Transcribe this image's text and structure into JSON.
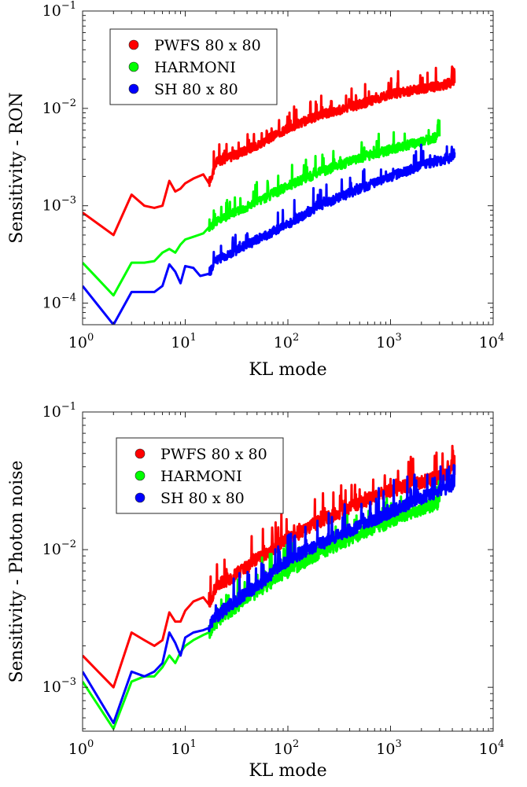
{
  "chart_data": [
    {
      "type": "line",
      "xscale": "log",
      "yscale": "log",
      "xlim": [
        1,
        10000
      ],
      "ylim": [
        6e-05,
        0.1
      ],
      "xlabel": "KL mode",
      "ylabel": "Sensitivity - RON",
      "xticks": [
        {
          "base": "10",
          "exp": "0",
          "value": 1
        },
        {
          "base": "10",
          "exp": "1",
          "value": 10
        },
        {
          "base": "10",
          "exp": "2",
          "value": 100
        },
        {
          "base": "10",
          "exp": "3",
          "value": 1000
        },
        {
          "base": "10",
          "exp": "4",
          "value": 10000
        }
      ],
      "yticks": [
        {
          "base": "10",
          "exp": "−4",
          "value": 0.0001
        },
        {
          "base": "10",
          "exp": "−3",
          "value": 0.001
        },
        {
          "base": "10",
          "exp": "−2",
          "value": 0.01
        },
        {
          "base": "10",
          "exp": "−1",
          "value": 0.1
        }
      ],
      "legend_position": "top-left",
      "series": [
        {
          "name": "PWFS 80 x 80",
          "color": "#ff0000",
          "max_mode": 4200,
          "points": [
            [
              1,
              0.00085
            ],
            [
              2,
              0.0005
            ],
            [
              3,
              0.0013
            ],
            [
              4,
              0.001
            ],
            [
              5,
              0.00095
            ],
            [
              6,
              0.001
            ],
            [
              7,
              0.0018
            ],
            [
              8,
              0.0014
            ],
            [
              9,
              0.0015
            ],
            [
              10,
              0.0017
            ],
            [
              12,
              0.0019
            ],
            [
              15,
              0.0021
            ],
            [
              17,
              0.0017
            ],
            [
              20,
              0.0028
            ],
            [
              30,
              0.0033
            ],
            [
              50,
              0.0042
            ],
            [
              100,
              0.0063
            ],
            [
              200,
              0.0085
            ],
            [
              500,
              0.011
            ],
            [
              1000,
              0.014
            ],
            [
              2000,
              0.016
            ],
            [
              3000,
              0.017
            ],
            [
              4200,
              0.019
            ]
          ]
        },
        {
          "name": "HARMONI",
          "color": "#00ff00",
          "max_mode": 3000,
          "points": [
            [
              1,
              0.00026
            ],
            [
              2,
              0.00012
            ],
            [
              3,
              0.00026
            ],
            [
              4,
              0.00026
            ],
            [
              5,
              0.00027
            ],
            [
              6,
              0.00033
            ],
            [
              7,
              0.00036
            ],
            [
              8,
              0.00033
            ],
            [
              9,
              0.0004
            ],
            [
              10,
              0.00045
            ],
            [
              12,
              0.00048
            ],
            [
              15,
              0.00052
            ],
            [
              17,
              0.0006
            ],
            [
              20,
              0.0007
            ],
            [
              30,
              0.00085
            ],
            [
              50,
              0.0011
            ],
            [
              100,
              0.0016
            ],
            [
              200,
              0.0022
            ],
            [
              500,
              0.0031
            ],
            [
              1000,
              0.0038
            ],
            [
              2000,
              0.0046
            ],
            [
              3000,
              0.0052
            ]
          ]
        },
        {
          "name": "SH 80 x 80",
          "color": "#0000ff",
          "max_mode": 4200,
          "points": [
            [
              1,
              0.00015
            ],
            [
              2,
              6e-05
            ],
            [
              3,
              0.00013
            ],
            [
              4,
              0.00013
            ],
            [
              5,
              0.00013
            ],
            [
              6,
              0.00015
            ],
            [
              7,
              0.00025
            ],
            [
              8,
              0.00021
            ],
            [
              9,
              0.00016
            ],
            [
              10,
              0.00024
            ],
            [
              12,
              0.00023
            ],
            [
              14,
              0.00019
            ],
            [
              17,
              0.0002
            ],
            [
              20,
              0.00028
            ],
            [
              30,
              0.00034
            ],
            [
              50,
              0.00045
            ],
            [
              100,
              0.00065
            ],
            [
              200,
              0.001
            ],
            [
              500,
              0.0015
            ],
            [
              1000,
              0.002
            ],
            [
              2000,
              0.0026
            ],
            [
              3000,
              0.0029
            ],
            [
              4200,
              0.0032
            ]
          ]
        }
      ]
    },
    {
      "type": "line",
      "xscale": "log",
      "yscale": "log",
      "xlim": [
        1,
        10000
      ],
      "ylim": [
        0.00048,
        0.1
      ],
      "xlabel": "KL mode",
      "ylabel": "Sensitivity - Photon noise",
      "xticks": [
        {
          "base": "10",
          "exp": "0",
          "value": 1
        },
        {
          "base": "10",
          "exp": "1",
          "value": 10
        },
        {
          "base": "10",
          "exp": "2",
          "value": 100
        },
        {
          "base": "10",
          "exp": "3",
          "value": 1000
        },
        {
          "base": "10",
          "exp": "4",
          "value": 10000
        }
      ],
      "yticks": [
        {
          "base": "10",
          "exp": "−3",
          "value": 0.001
        },
        {
          "base": "10",
          "exp": "−2",
          "value": 0.01
        },
        {
          "base": "10",
          "exp": "−1",
          "value": 0.1
        }
      ],
      "legend_position": "top-left",
      "series": [
        {
          "name": "PWFS 80 x 80",
          "color": "#ff0000",
          "max_mode": 4200,
          "points": [
            [
              1,
              0.0017
            ],
            [
              2,
              0.001
            ],
            [
              3,
              0.0025
            ],
            [
              4,
              0.0022
            ],
            [
              5,
              0.002
            ],
            [
              6,
              0.0022
            ],
            [
              7,
              0.0035
            ],
            [
              8,
              0.003
            ],
            [
              9,
              0.003
            ],
            [
              10,
              0.0036
            ],
            [
              12,
              0.0042
            ],
            [
              15,
              0.0045
            ],
            [
              17,
              0.004
            ],
            [
              20,
              0.0055
            ],
            [
              30,
              0.0065
            ],
            [
              50,
              0.0085
            ],
            [
              100,
              0.012
            ],
            [
              200,
              0.016
            ],
            [
              500,
              0.022
            ],
            [
              1000,
              0.027
            ],
            [
              2000,
              0.031
            ],
            [
              3000,
              0.034
            ],
            [
              4200,
              0.038
            ]
          ]
        },
        {
          "name": "HARMONI",
          "color": "#00ff00",
          "max_mode": 3000,
          "points": [
            [
              1,
              0.0011
            ],
            [
              2,
              0.0005
            ],
            [
              3,
              0.0011
            ],
            [
              4,
              0.0012
            ],
            [
              5,
              0.0012
            ],
            [
              6,
              0.0014
            ],
            [
              7,
              0.0017
            ],
            [
              8,
              0.0015
            ],
            [
              9,
              0.0018
            ],
            [
              10,
              0.002
            ],
            [
              12,
              0.0022
            ],
            [
              15,
              0.0024
            ],
            [
              17,
              0.0025
            ],
            [
              20,
              0.003
            ],
            [
              30,
              0.0038
            ],
            [
              50,
              0.005
            ],
            [
              100,
              0.007
            ],
            [
              200,
              0.0095
            ],
            [
              500,
              0.013
            ],
            [
              1000,
              0.016
            ],
            [
              2000,
              0.02
            ],
            [
              3000,
              0.022
            ]
          ]
        },
        {
          "name": "SH 80 x 80",
          "color": "#0000ff",
          "max_mode": 4200,
          "points": [
            [
              1,
              0.0013
            ],
            [
              2,
              0.00055
            ],
            [
              3,
              0.0013
            ],
            [
              4,
              0.0012
            ],
            [
              5,
              0.0013
            ],
            [
              6,
              0.0015
            ],
            [
              7,
              0.0025
            ],
            [
              8,
              0.0021
            ],
            [
              9,
              0.0017
            ],
            [
              10,
              0.0023
            ],
            [
              12,
              0.0025
            ],
            [
              15,
              0.0026
            ],
            [
              17,
              0.0027
            ],
            [
              20,
              0.0033
            ],
            [
              30,
              0.0042
            ],
            [
              50,
              0.0055
            ],
            [
              100,
              0.0085
            ],
            [
              200,
              0.011
            ],
            [
              500,
              0.015
            ],
            [
              1000,
              0.019
            ],
            [
              2000,
              0.024
            ],
            [
              3000,
              0.027
            ],
            [
              4200,
              0.03
            ]
          ]
        }
      ]
    }
  ]
}
